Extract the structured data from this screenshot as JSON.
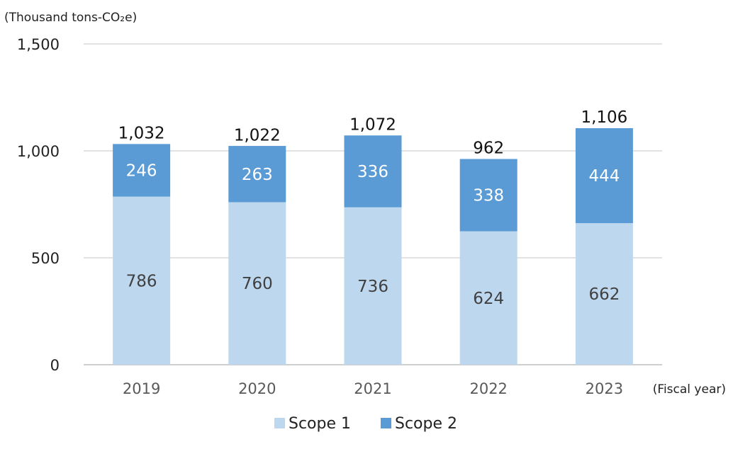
{
  "chart_data": {
    "type": "bar",
    "stacked": true,
    "unit_label": "(Thousand tons-CO₂e)",
    "x_unit_label": "(Fiscal year)",
    "categories": [
      "2019",
      "2020",
      "2021",
      "2022",
      "2023"
    ],
    "series": [
      {
        "name": "Scope 1",
        "values": [
          786,
          760,
          736,
          624,
          662
        ],
        "color": "#bdd7ee"
      },
      {
        "name": "Scope 2",
        "values": [
          246,
          263,
          336,
          338,
          444
        ],
        "color": "#5b9bd5"
      }
    ],
    "totals": [
      1032,
      1022,
      1072,
      962,
      1106
    ],
    "value_labels": {
      "scope1": [
        "786",
        "760",
        "736",
        "624",
        "662"
      ],
      "scope2": [
        "246",
        "263",
        "336",
        "338",
        "444"
      ],
      "totals": [
        "1,032",
        "1,022",
        "1,072",
        "962",
        "1,106"
      ]
    },
    "y_ticks": [
      0,
      500,
      1000,
      1500
    ],
    "y_tick_labels": [
      "0",
      "500",
      "1,000",
      "1,500"
    ],
    "ylim": [
      0,
      1500
    ],
    "grid": true,
    "legend_position": "bottom"
  }
}
